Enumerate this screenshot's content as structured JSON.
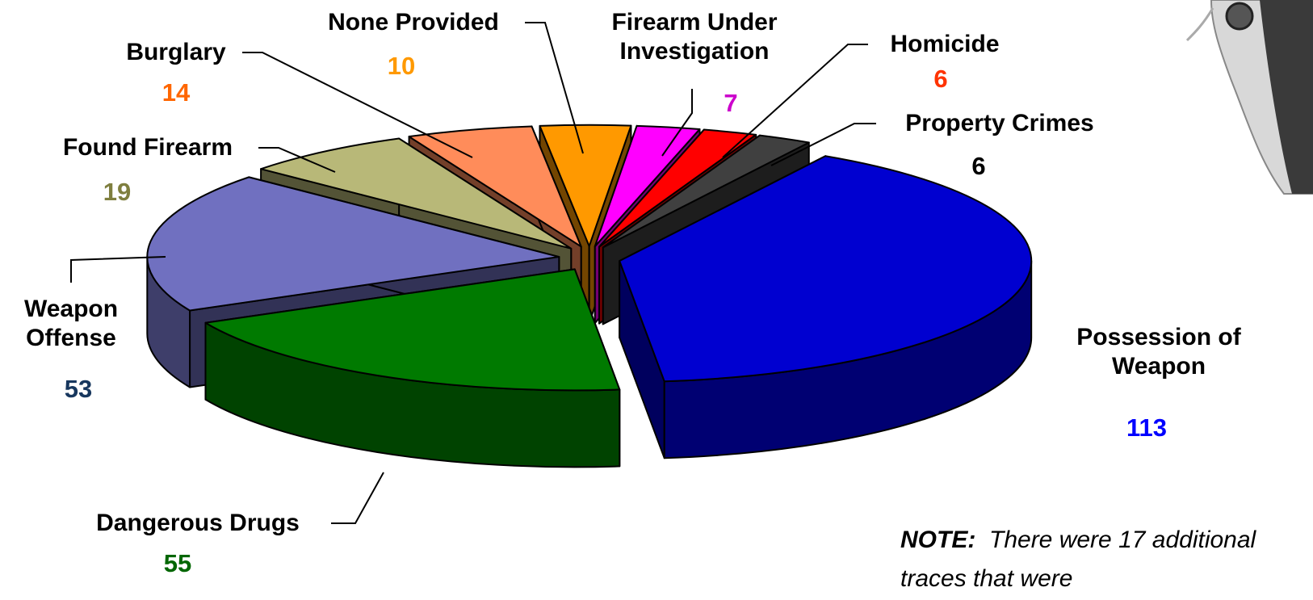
{
  "chart_data": {
    "type": "pie3d",
    "categories": [
      "Possession of Weapon",
      "Dangerous Drugs",
      "Weapon Offense",
      "Found Firearm",
      "Burglary",
      "None Provided",
      "Firearm Under Investigation",
      "Homicide",
      "Property Crimes"
    ],
    "values": [
      113,
      55,
      53,
      19,
      14,
      10,
      7,
      6,
      6
    ],
    "colors": [
      "#0000d0",
      "#007a00",
      "#7070c0",
      "#b8b878",
      "#ff8c5a",
      "#ff9900",
      "#ff00ff",
      "#ff0000",
      "#404040"
    ],
    "value_colors": [
      "#0000ff",
      "#006600",
      "#17375e",
      "#7f7f3f",
      "#ff6600",
      "#ff9900",
      "#cc00cc",
      "#ff3300",
      "#000000"
    ],
    "note": {
      "label": "NOTE:",
      "text": "There were 17 additional traces that were"
    }
  }
}
